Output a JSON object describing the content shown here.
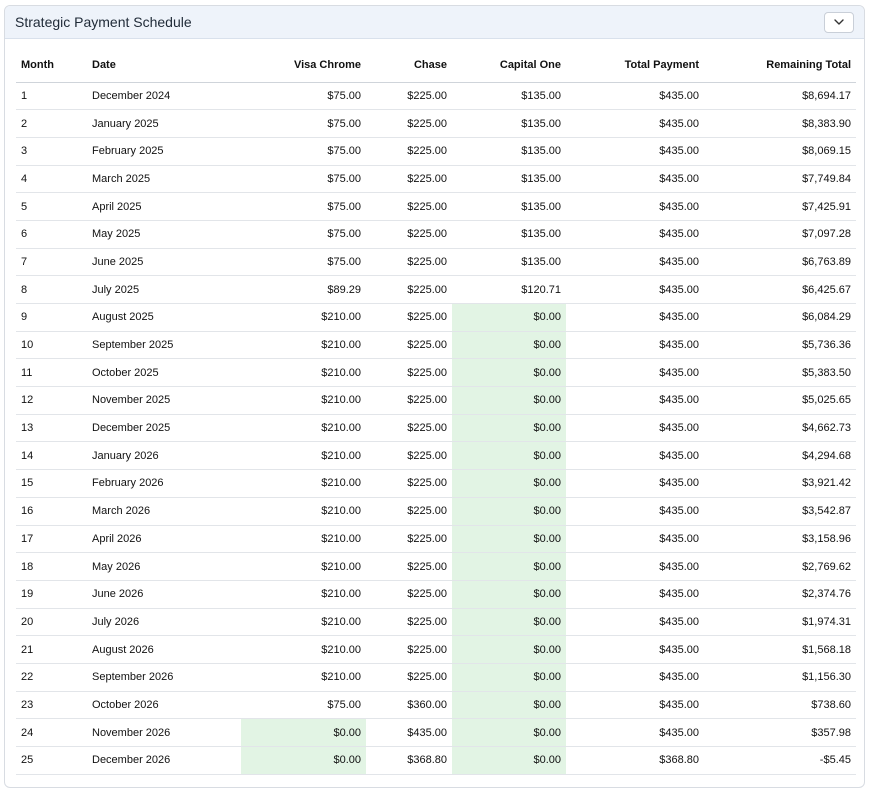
{
  "panel": {
    "title": "Strategic Payment Schedule",
    "toggle_icon": "chevron-down-icon"
  },
  "colors": {
    "header_bg": "#eef3fa",
    "paid_off_highlight": "#e2f4e4"
  },
  "table": {
    "headers": [
      "Month",
      "Date",
      "Visa Chrome",
      "Chase",
      "Capital One",
      "Total Payment",
      "Remaining Total"
    ],
    "rows": [
      [
        "1",
        "December 2024",
        "$75.00",
        "$225.00",
        "$135.00",
        "$435.00",
        "$8,694.17"
      ],
      [
        "2",
        "January 2025",
        "$75.00",
        "$225.00",
        "$135.00",
        "$435.00",
        "$8,383.90"
      ],
      [
        "3",
        "February 2025",
        "$75.00",
        "$225.00",
        "$135.00",
        "$435.00",
        "$8,069.15"
      ],
      [
        "4",
        "March 2025",
        "$75.00",
        "$225.00",
        "$135.00",
        "$435.00",
        "$7,749.84"
      ],
      [
        "5",
        "April 2025",
        "$75.00",
        "$225.00",
        "$135.00",
        "$435.00",
        "$7,425.91"
      ],
      [
        "6",
        "May 2025",
        "$75.00",
        "$225.00",
        "$135.00",
        "$435.00",
        "$7,097.28"
      ],
      [
        "7",
        "June 2025",
        "$75.00",
        "$225.00",
        "$135.00",
        "$435.00",
        "$6,763.89"
      ],
      [
        "8",
        "July 2025",
        "$89.29",
        "$225.00",
        "$120.71",
        "$435.00",
        "$6,425.67"
      ],
      [
        "9",
        "August 2025",
        "$210.00",
        "$225.00",
        "$0.00",
        "$435.00",
        "$6,084.29"
      ],
      [
        "10",
        "September 2025",
        "$210.00",
        "$225.00",
        "$0.00",
        "$435.00",
        "$5,736.36"
      ],
      [
        "11",
        "October 2025",
        "$210.00",
        "$225.00",
        "$0.00",
        "$435.00",
        "$5,383.50"
      ],
      [
        "12",
        "November 2025",
        "$210.00",
        "$225.00",
        "$0.00",
        "$435.00",
        "$5,025.65"
      ],
      [
        "13",
        "December 2025",
        "$210.00",
        "$225.00",
        "$0.00",
        "$435.00",
        "$4,662.73"
      ],
      [
        "14",
        "January 2026",
        "$210.00",
        "$225.00",
        "$0.00",
        "$435.00",
        "$4,294.68"
      ],
      [
        "15",
        "February 2026",
        "$210.00",
        "$225.00",
        "$0.00",
        "$435.00",
        "$3,921.42"
      ],
      [
        "16",
        "March 2026",
        "$210.00",
        "$225.00",
        "$0.00",
        "$435.00",
        "$3,542.87"
      ],
      [
        "17",
        "April 2026",
        "$210.00",
        "$225.00",
        "$0.00",
        "$435.00",
        "$3,158.96"
      ],
      [
        "18",
        "May 2026",
        "$210.00",
        "$225.00",
        "$0.00",
        "$435.00",
        "$2,769.62"
      ],
      [
        "19",
        "June 2026",
        "$210.00",
        "$225.00",
        "$0.00",
        "$435.00",
        "$2,374.76"
      ],
      [
        "20",
        "July 2026",
        "$210.00",
        "$225.00",
        "$0.00",
        "$435.00",
        "$1,974.31"
      ],
      [
        "21",
        "August 2026",
        "$210.00",
        "$225.00",
        "$0.00",
        "$435.00",
        "$1,568.18"
      ],
      [
        "22",
        "September 2026",
        "$210.00",
        "$225.00",
        "$0.00",
        "$435.00",
        "$1,156.30"
      ],
      [
        "23",
        "October 2026",
        "$75.00",
        "$360.00",
        "$0.00",
        "$435.00",
        "$738.60"
      ],
      [
        "24",
        "November 2026",
        "$0.00",
        "$435.00",
        "$0.00",
        "$435.00",
        "$357.98"
      ],
      [
        "25",
        "December 2026",
        "$0.00",
        "$368.80",
        "$0.00",
        "$368.80",
        "-$5.45"
      ]
    ]
  }
}
